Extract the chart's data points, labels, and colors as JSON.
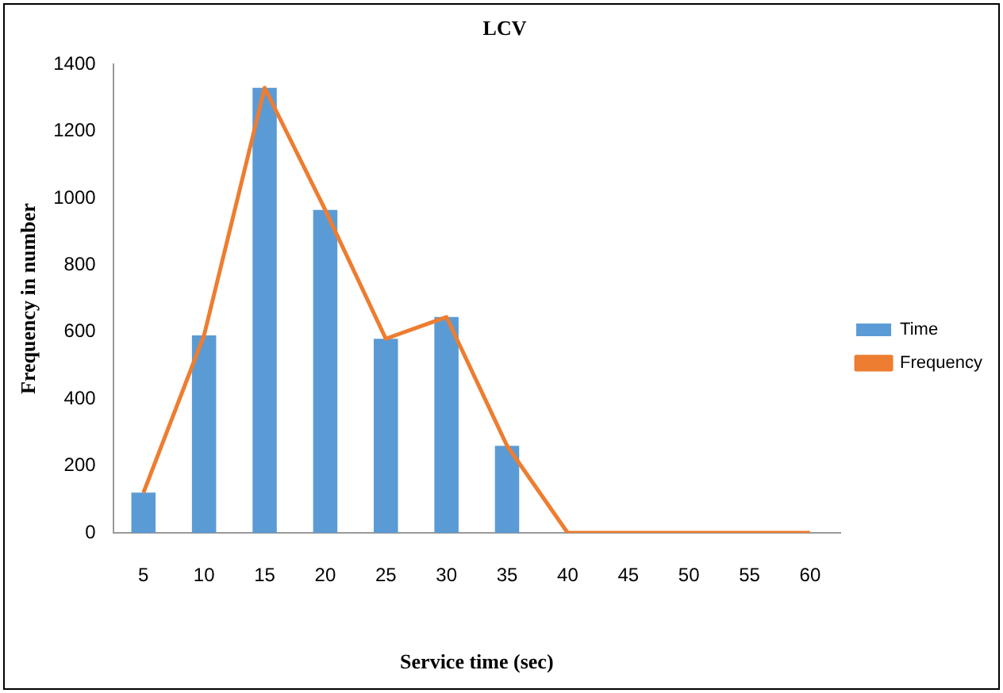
{
  "chart_data": {
    "type": "bar",
    "title": "LCV",
    "xlabel": "Service time (sec)",
    "ylabel": "Frequency in number",
    "categories": [
      "5",
      "10",
      "15",
      "20",
      "25",
      "30",
      "35",
      "40",
      "45",
      "50",
      "55",
      "60"
    ],
    "series": [
      {
        "name": "Time",
        "color": "#5b9bd5",
        "values": [
          120,
          590,
          1330,
          965,
          580,
          645,
          260,
          0,
          0,
          0,
          0,
          0
        ]
      },
      {
        "name": "Frequency",
        "type": "line",
        "color": "#ed7d31",
        "values": [
          120,
          590,
          1330,
          965,
          580,
          645,
          260,
          0,
          0,
          0,
          0,
          0
        ]
      }
    ],
    "ylim": [
      0,
      1400
    ],
    "yticks": [
      0,
      200,
      400,
      600,
      800,
      1000,
      1200,
      1400
    ],
    "grid": false,
    "legend": "right",
    "marker": "none"
  }
}
